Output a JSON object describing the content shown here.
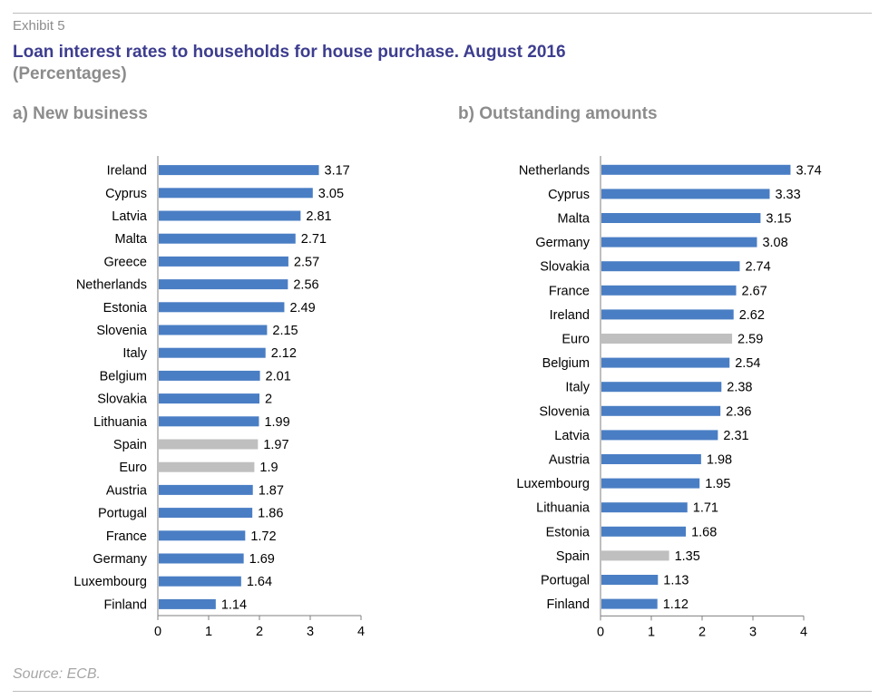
{
  "header": {
    "exhibit": "Exhibit 5",
    "title": "Loan interest rates to households for house purchase. August 2016",
    "subtitle": "(Percentages)"
  },
  "footer": {
    "source": "Source: ECB."
  },
  "colors": {
    "bar": "#4a7ec4",
    "highlight": "#bfbfbf",
    "axis": "#7f7f7f",
    "title": "#3d3d8f",
    "muted": "#8c8c8c"
  },
  "chart_data": [
    {
      "type": "bar",
      "orientation": "horizontal",
      "title": "a) New business",
      "categories": [
        "Ireland",
        "Cyprus",
        "Latvia",
        "Malta",
        "Greece",
        "Netherlands",
        "Estonia",
        "Slovenia",
        "Italy",
        "Belgium",
        "Slovakia",
        "Lithuania",
        "Spain",
        "Euro",
        "Austria",
        "Portugal",
        "France",
        "Germany",
        "Luxembourg",
        "Finland"
      ],
      "values": [
        3.17,
        3.05,
        2.81,
        2.71,
        2.57,
        2.56,
        2.49,
        2.15,
        2.12,
        2.01,
        2,
        1.99,
        1.97,
        1.9,
        1.87,
        1.86,
        1.72,
        1.69,
        1.64,
        1.14
      ],
      "highlighted": [
        "Spain",
        "Euro"
      ],
      "xlim": [
        0,
        4
      ],
      "xticks": [
        0,
        1,
        2,
        3,
        4
      ],
      "grid": false,
      "data_labels": true
    },
    {
      "type": "bar",
      "orientation": "horizontal",
      "title": "b) Outstanding amounts",
      "categories": [
        "Netherlands",
        "Cyprus",
        "Malta",
        "Germany",
        "Slovakia",
        "France",
        "Ireland",
        "Euro",
        "Belgium",
        "Italy",
        "Slovenia",
        "Latvia",
        "Austria",
        "Luxembourg",
        "Lithuania",
        "Estonia",
        "Spain",
        "Portugal",
        "Finland"
      ],
      "values": [
        3.74,
        3.33,
        3.15,
        3.08,
        2.74,
        2.67,
        2.62,
        2.59,
        2.54,
        2.38,
        2.36,
        2.31,
        1.98,
        1.95,
        1.71,
        1.68,
        1.35,
        1.13,
        1.12
      ],
      "highlighted": [
        "Euro",
        "Spain"
      ],
      "xlim": [
        0,
        4
      ],
      "xticks": [
        0,
        1,
        2,
        3,
        4
      ],
      "grid": false,
      "data_labels": true
    }
  ]
}
